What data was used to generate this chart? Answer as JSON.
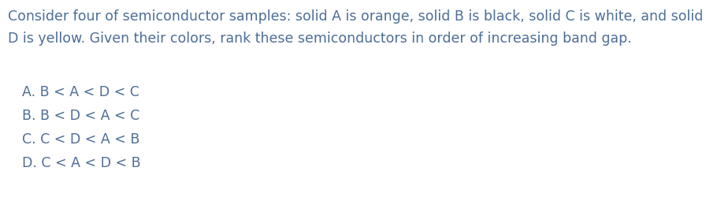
{
  "background_color": "#ffffff",
  "text_color": "#4d6d96",
  "question_line1": "Consider four of semiconductor samples: solid A is orange, solid B is black, solid C is white, and solid",
  "question_line2": "D is yellow. Given their colors, rank these semiconductors in order of increasing band gap.",
  "options": [
    "A. B < A < D < C",
    "B. B < D < A < C",
    "C. C < D < A < B",
    "D. C < A < D < B"
  ],
  "question_fontsize": 12.5,
  "option_fontsize": 12.5,
  "fig_width": 8.96,
  "fig_height": 2.69,
  "dpi": 100
}
